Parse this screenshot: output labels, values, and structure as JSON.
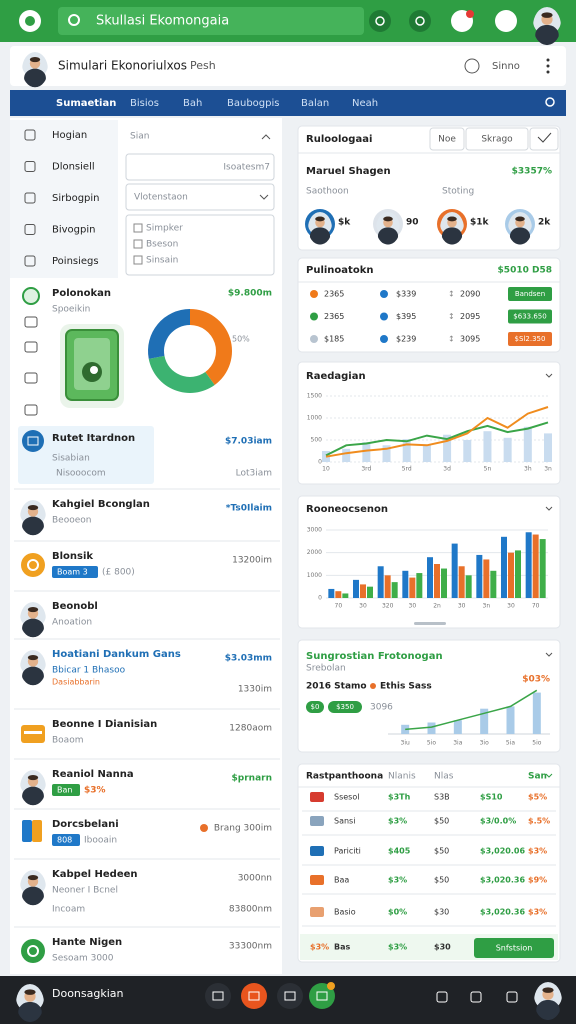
{
  "top_bar": {
    "search": "Skullasi Ekomongaia"
  },
  "header": {
    "title": "Simulari Ekonoriulxos",
    "subtitle": "Pesh",
    "action": "Sinno"
  },
  "nav": {
    "tabs": [
      "Sumaetian",
      "Bisios",
      "Bah",
      "Baubogpis",
      "Balan",
      "Neah"
    ]
  },
  "sidebar": {
    "items": [
      "Hogian",
      "Dlonsiell",
      "Sirbogpin",
      "Bivogpin",
      "Poinsiegs"
    ]
  },
  "filters": {
    "label": "Sian",
    "input": "Isoatesm7",
    "select": "Vlotenstaon",
    "options": [
      "Simpker",
      "Bseson",
      "Sinsain"
    ]
  },
  "portfolio": {
    "title": "Polonokan",
    "value": "$9.800m",
    "subtitle": "Spoeikin",
    "donut": {
      "label": "50%",
      "values": [
        40,
        32,
        28
      ],
      "colors": [
        "#f07a1a",
        "#3cb371",
        "#1f6fb5"
      ]
    }
  },
  "summary": {
    "title": "Rutet Itardnon",
    "value": "$7.03iam",
    "subtitle": "Sisabian",
    "detail": "Nisooocom",
    "detail_value": "Lot3iam"
  },
  "list": [
    {
      "title": "Kahgiel Bconglan",
      "subtitle": "Beooeon",
      "value": "*Ts0Ilaim"
    },
    {
      "title": "Blonsik",
      "badge": "Boam 3",
      "subtitle": "(£ 800)",
      "value": "13200im"
    },
    {
      "title": "Beonobl",
      "subtitle": "Anoation"
    },
    {
      "title": "Hoatiani Dankum Gans",
      "subtitle": "Bbicar 1 Bhasoo",
      "note": "Dasiabbarin",
      "value": "$3.03mm",
      "value2": "1330im"
    },
    {
      "title": "Beonne I Dianisian",
      "subtitle": "Boaom",
      "value": "1280aom"
    },
    {
      "title": "Reaniol Nanna",
      "badge": "Ban",
      "subtitle": "$3%",
      "value": "$prnarn"
    },
    {
      "title": "Dorcsbelani",
      "badge": "808",
      "subtitle": "Ibooain",
      "value": "Brang 300im"
    },
    {
      "title": "Kabpel Hedeen",
      "subtitle": "Neoner I Bcnel",
      "note": "Incoam",
      "value": "3000nn",
      "value2": "83800nm"
    },
    {
      "title": "Hante Nigen",
      "subtitle": "Sesoam 3000",
      "value": "33300nm"
    }
  ],
  "market": {
    "title": "Ruloologaai",
    "buttons": [
      "Noe",
      "Skrago"
    ],
    "name": "Maruel Shagen",
    "value": "$3357%",
    "labels": [
      "Saothoon",
      "Stoting"
    ],
    "people": [
      "$k",
      "90",
      "$1k",
      "2k"
    ]
  },
  "allocation": {
    "title": "Pulinoatokn",
    "value": "$5010 D58",
    "rows": [
      [
        "2365",
        "$339",
        "2090",
        "Bandsen"
      ],
      [
        "2365",
        "$395",
        "2095",
        "$633.650"
      ],
      [
        "$185",
        "$239",
        "3095",
        "$Sl2.350"
      ]
    ]
  },
  "line_chart": {
    "title": "Raedagian",
    "categories": [
      "10",
      null,
      "3rd",
      null,
      "5rd",
      null,
      "3d",
      null,
      "5n",
      null,
      "3h",
      "3n"
    ],
    "bars": [
      250,
      300,
      450,
      380,
      520,
      400,
      620,
      500,
      700,
      550,
      800,
      650
    ],
    "bar_color": "#c9dcef",
    "series": [
      {
        "color": "#3aa548",
        "values": [
          150,
          380,
          420,
          500,
          470,
          600,
          520,
          700,
          820,
          680,
          760,
          900
        ]
      },
      {
        "color": "#f08c1e",
        "values": [
          120,
          200,
          260,
          300,
          400,
          380,
          480,
          650,
          1000,
          780,
          1100,
          1250
        ]
      }
    ],
    "ylim": [
      0,
      1500
    ],
    "yticks": [
      0,
      500,
      1000,
      1500
    ]
  },
  "bar_chart": {
    "title": "Rooneocsenon",
    "categories": [
      "70",
      "30",
      "320",
      "30",
      "2n",
      "30",
      "3n",
      "30",
      "70"
    ],
    "series": [
      {
        "color": "#1f78c8",
        "values": [
          400,
          800,
          1400,
          1200,
          1800,
          2400,
          1900,
          2700,
          2900
        ]
      },
      {
        "color": "#e8702a",
        "values": [
          300,
          600,
          1000,
          900,
          1500,
          1400,
          1700,
          2000,
          2800
        ]
      },
      {
        "color": "#3fae49",
        "values": [
          200,
          500,
          700,
          1100,
          1300,
          1000,
          1200,
          2100,
          2600
        ]
      }
    ],
    "ylim": [
      0,
      3000
    ],
    "yticks": [
      0,
      1000,
      2000,
      3000
    ]
  },
  "combo_chart": {
    "title": "Sungrostian Frotonogan",
    "subtitle": "Srebolan",
    "stats": [
      "2016 Stamo",
      "Ethis Sass"
    ],
    "badges": [
      "$0",
      "$350"
    ],
    "note": "3096",
    "value": "$03%",
    "categories": [
      "3iu",
      "5io",
      "3ia",
      "3io",
      "5ia",
      "5io"
    ],
    "bars": [
      20,
      25,
      30,
      55,
      60,
      90
    ],
    "line": [
      10,
      15,
      30,
      45,
      60,
      95
    ],
    "bar_color": "#a9cbe8",
    "line_color": "#3aa548",
    "ylim": [
      0,
      100
    ]
  },
  "table": {
    "title": "Rastpanthoona",
    "columns": [
      "Nlanis",
      "Nlas"
    ],
    "filter": "San",
    "rows": [
      [
        "Ssesol",
        "$3Th",
        "S3B",
        "$S10",
        "$5%"
      ],
      [
        "Sansi",
        "$3%",
        "$50",
        "$3/0.0%",
        "$.5%"
      ],
      [
        "Pariciti",
        "$405",
        "$50",
        "$3,020.06",
        "$3%"
      ],
      [
        "Baa",
        "$3%",
        "$50",
        "$3,020.36",
        "$9%"
      ],
      [
        "Basio",
        "$0%",
        "$30",
        "$3,020.36",
        "$3%"
      ]
    ],
    "footer": {
      "cells": [
        "$3%",
        "Bas",
        "$3%",
        "$30"
      ],
      "button": "Snfstsion"
    }
  },
  "bottom_bar": {
    "title": "Doonsagkian"
  }
}
